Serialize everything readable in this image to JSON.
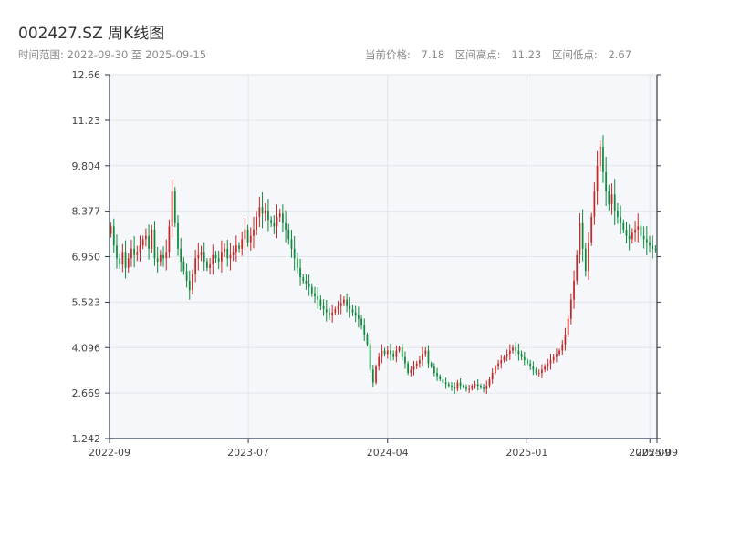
{
  "header": {
    "title": "002427.SZ 周K线图",
    "range_label": "时间范围:",
    "start_date": "2022-09-30",
    "range_sep": "至",
    "end_date": "2025-09-15",
    "current_price_label": "当前价格:",
    "current_price": "7.18",
    "high_label": "区间高点:",
    "high": "11.23",
    "low_label": "区间低点:",
    "low": "2.67"
  },
  "colors": {
    "up": "#c62828",
    "down": "#0f8a3c",
    "plot_bg": "#f5f7fa",
    "grid": "#e2e5ea",
    "axis": "#2f3b4c",
    "label": "#444444"
  },
  "chart_data": {
    "type": "candlestick",
    "title": "002427.SZ 周K线图",
    "xlabel": "",
    "ylabel": "",
    "ylim": [
      1.242,
      12.66
    ],
    "xlim": [
      "2022-09-30",
      "2025-09-15"
    ],
    "grid": true,
    "y_ticks": [
      "1.242",
      "2.669",
      "4.096",
      "5.523",
      "6.950",
      "8.377",
      "9.804",
      "11.23",
      "12.66"
    ],
    "x_ticks": [
      {
        "date": "2022-09-30",
        "label": "2022-09"
      },
      {
        "date": "2023-07-01",
        "label": "2023-07"
      },
      {
        "date": "2024-04-01",
        "label": "2024-04"
      },
      {
        "date": "2025-01-01",
        "label": "2025-01"
      },
      {
        "date": "2025-09-01",
        "label": "2025-09"
      },
      {
        "date": "2025-09-15",
        "label": "2025-09"
      }
    ],
    "weekly_close": [
      7.9,
      7.3,
      6.9,
      6.7,
      7.1,
      6.6,
      6.9,
      7.2,
      7.0,
      7.1,
      7.3,
      7.5,
      7.6,
      7.2,
      7.8,
      6.9,
      6.8,
      7.0,
      6.9,
      7.1,
      7.9,
      9.0,
      8.0,
      7.2,
      6.8,
      6.5,
      6.2,
      5.9,
      6.4,
      6.9,
      7.0,
      7.1,
      6.8,
      6.6,
      6.7,
      7.0,
      6.9,
      6.8,
      7.1,
      7.2,
      6.9,
      7.0,
      7.1,
      7.3,
      7.2,
      7.5,
      7.8,
      7.4,
      7.6,
      7.8,
      8.2,
      8.5,
      8.3,
      8.4,
      8.1,
      8.0,
      7.9,
      8.2,
      8.3,
      8.0,
      7.8,
      7.5,
      7.2,
      6.9,
      6.6,
      6.3,
      6.2,
      6.1,
      6.0,
      5.8,
      5.7,
      5.6,
      5.4,
      5.3,
      5.2,
      5.1,
      5.2,
      5.3,
      5.4,
      5.5,
      5.6,
      5.4,
      5.3,
      5.2,
      5.1,
      5.0,
      4.8,
      4.5,
      4.2,
      3.4,
      3.0,
      3.5,
      3.8,
      4.0,
      3.9,
      4.0,
      3.9,
      3.8,
      4.0,
      4.1,
      3.8,
      3.6,
      3.3,
      3.4,
      3.5,
      3.6,
      3.7,
      3.9,
      4.0,
      3.6,
      3.5,
      3.3,
      3.2,
      3.1,
      3.0,
      2.95,
      2.9,
      2.85,
      2.8,
      3.0,
      2.9,
      2.85,
      2.8,
      2.8,
      2.9,
      2.95,
      2.9,
      2.85,
      2.8,
      2.9,
      3.1,
      3.3,
      3.5,
      3.6,
      3.7,
      3.8,
      3.9,
      4.0,
      4.1,
      4.0,
      3.9,
      3.8,
      3.7,
      3.6,
      3.5,
      3.4,
      3.3,
      3.3,
      3.4,
      3.5,
      3.6,
      3.7,
      3.8,
      3.9,
      4.0,
      4.2,
      4.5,
      5.0,
      5.6,
      6.2,
      7.0,
      8.0,
      7.2,
      6.5,
      7.4,
      8.2,
      9.0,
      9.8,
      10.4,
      9.6,
      9.0,
      8.6,
      8.9,
      8.4,
      8.2,
      8.0,
      7.8,
      7.6,
      7.5,
      7.7,
      7.8,
      7.9,
      7.6,
      7.5,
      7.4,
      7.3,
      7.2,
      7.18
    ]
  }
}
